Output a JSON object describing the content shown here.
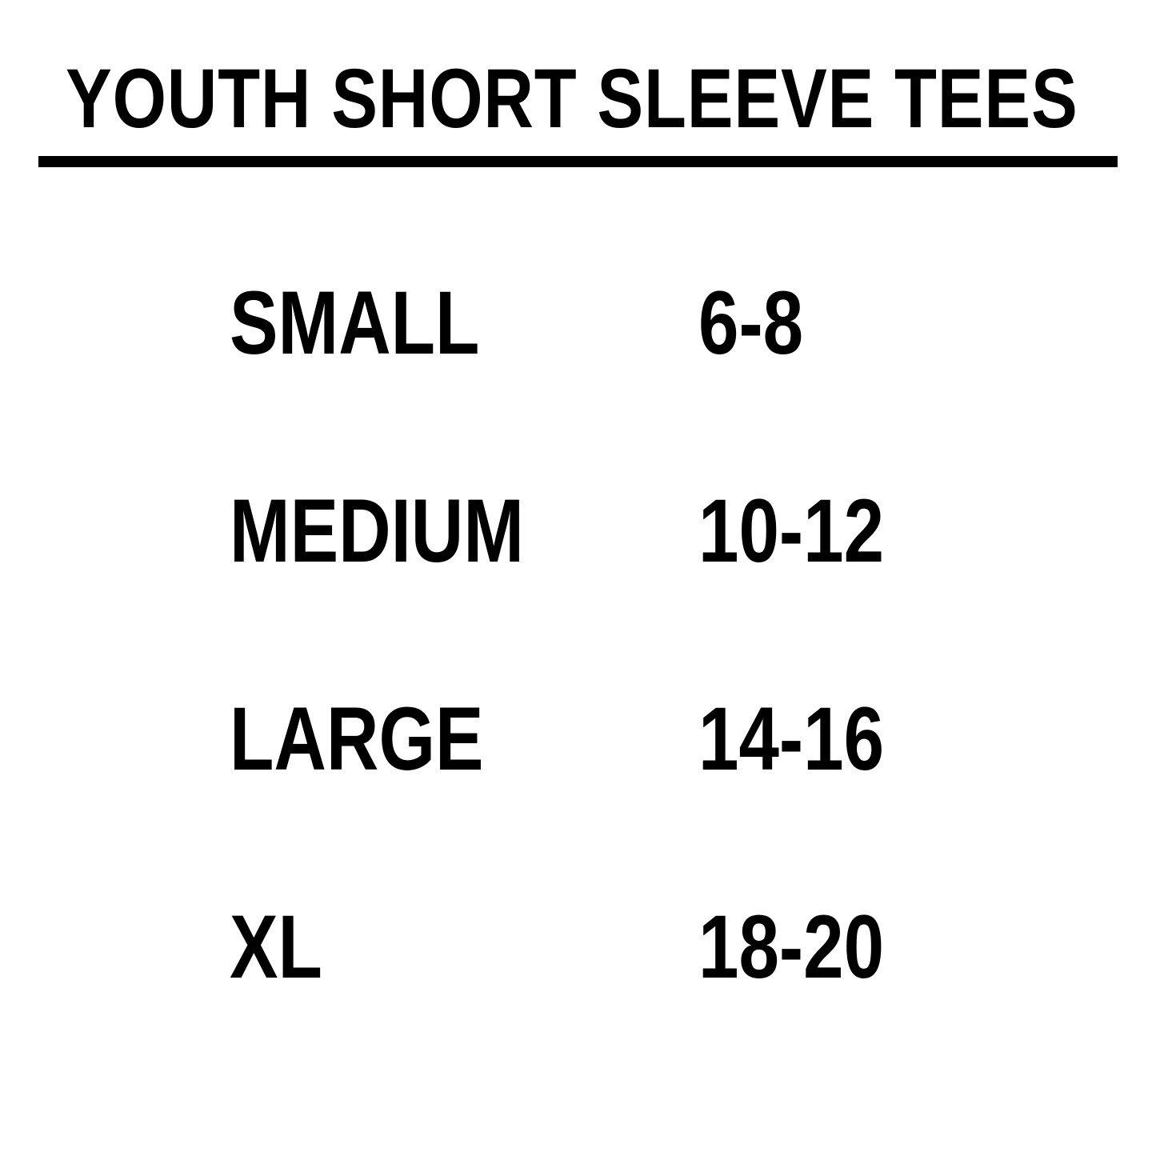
{
  "title": "YOUTH SHORT SLEEVE TEES",
  "colors": {
    "text": "#000000",
    "background": "#ffffff"
  },
  "rows": [
    {
      "size": "SMALL",
      "range": "6-8"
    },
    {
      "size": "MEDIUM",
      "range": "10-12"
    },
    {
      "size": "LARGE",
      "range": "14-16"
    },
    {
      "size": "XL",
      "range": "18-20"
    }
  ]
}
